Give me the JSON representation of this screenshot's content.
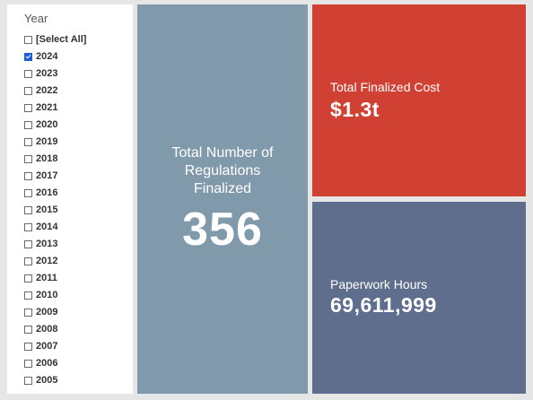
{
  "slicer": {
    "title": "Year",
    "items": [
      {
        "label": "[Select All]",
        "checked": false
      },
      {
        "label": "2024",
        "checked": true
      },
      {
        "label": "2023",
        "checked": false
      },
      {
        "label": "2022",
        "checked": false
      },
      {
        "label": "2021",
        "checked": false
      },
      {
        "label": "2020",
        "checked": false
      },
      {
        "label": "2019",
        "checked": false
      },
      {
        "label": "2018",
        "checked": false
      },
      {
        "label": "2017",
        "checked": false
      },
      {
        "label": "2016",
        "checked": false
      },
      {
        "label": "2015",
        "checked": false
      },
      {
        "label": "2014",
        "checked": false
      },
      {
        "label": "2013",
        "checked": false
      },
      {
        "label": "2012",
        "checked": false
      },
      {
        "label": "2011",
        "checked": false
      },
      {
        "label": "2010",
        "checked": false
      },
      {
        "label": "2009",
        "checked": false
      },
      {
        "label": "2008",
        "checked": false
      },
      {
        "label": "2007",
        "checked": false
      },
      {
        "label": "2006",
        "checked": false
      },
      {
        "label": "2005",
        "checked": false
      }
    ]
  },
  "cards": {
    "regulations": {
      "label": "Total Number of Regulations Finalized",
      "value": "356",
      "color": "#8099ab"
    },
    "cost": {
      "label": "Total Finalized Cost",
      "value": "$1.3t",
      "color": "#d04133"
    },
    "paperwork": {
      "label": "Paperwork Hours",
      "value": "69,611,999",
      "color": "#5f6e8c"
    }
  },
  "colors": {
    "background": "#e6e6e6",
    "checkbox_checked": "#1e5fd6"
  }
}
